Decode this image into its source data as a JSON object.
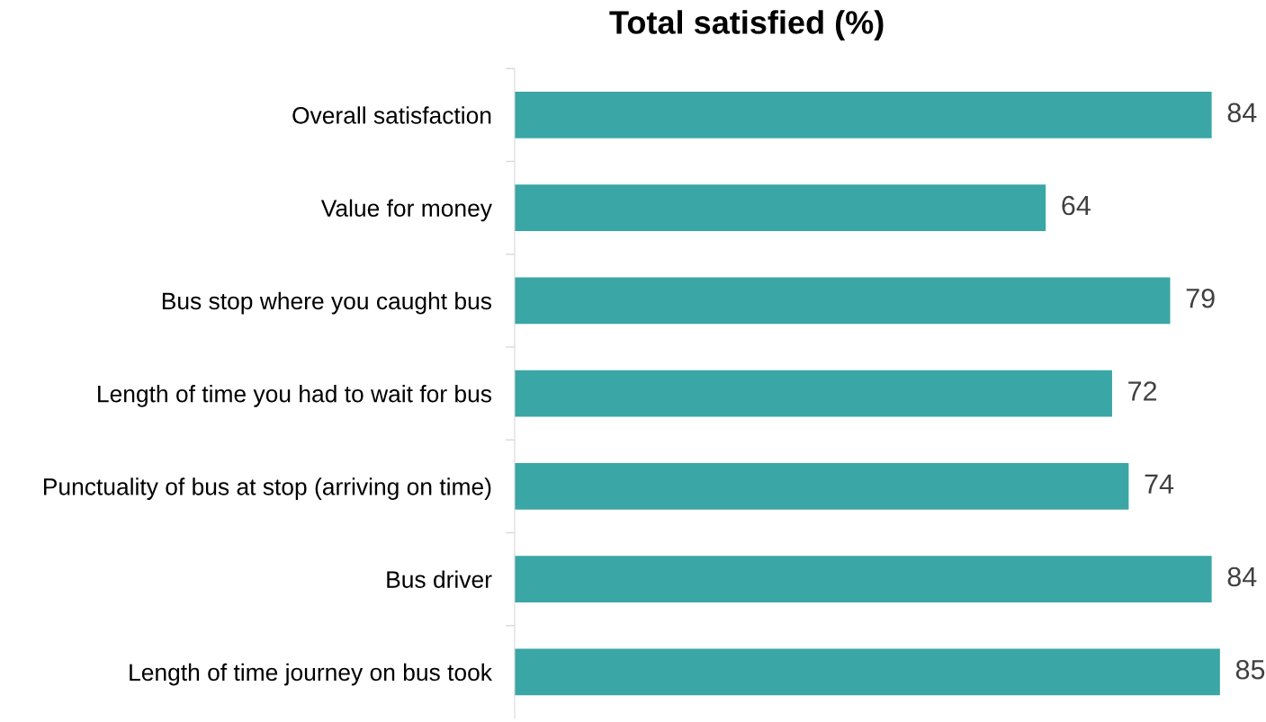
{
  "chart_data": {
    "type": "bar",
    "orientation": "horizontal",
    "title": "Total satisfied (%)",
    "categories": [
      "Overall satisfaction",
      "Value for money",
      "Bus stop where you caught bus",
      "Length of time you had to wait for bus",
      "Punctuality of bus at stop (arriving on time)",
      "Bus driver",
      "Length of time journey on bus took"
    ],
    "values": [
      84,
      64,
      79,
      72,
      74,
      84,
      85
    ],
    "color": "#3ba6a6",
    "data_labels": true,
    "grid": false,
    "tick_labels": "y"
  }
}
